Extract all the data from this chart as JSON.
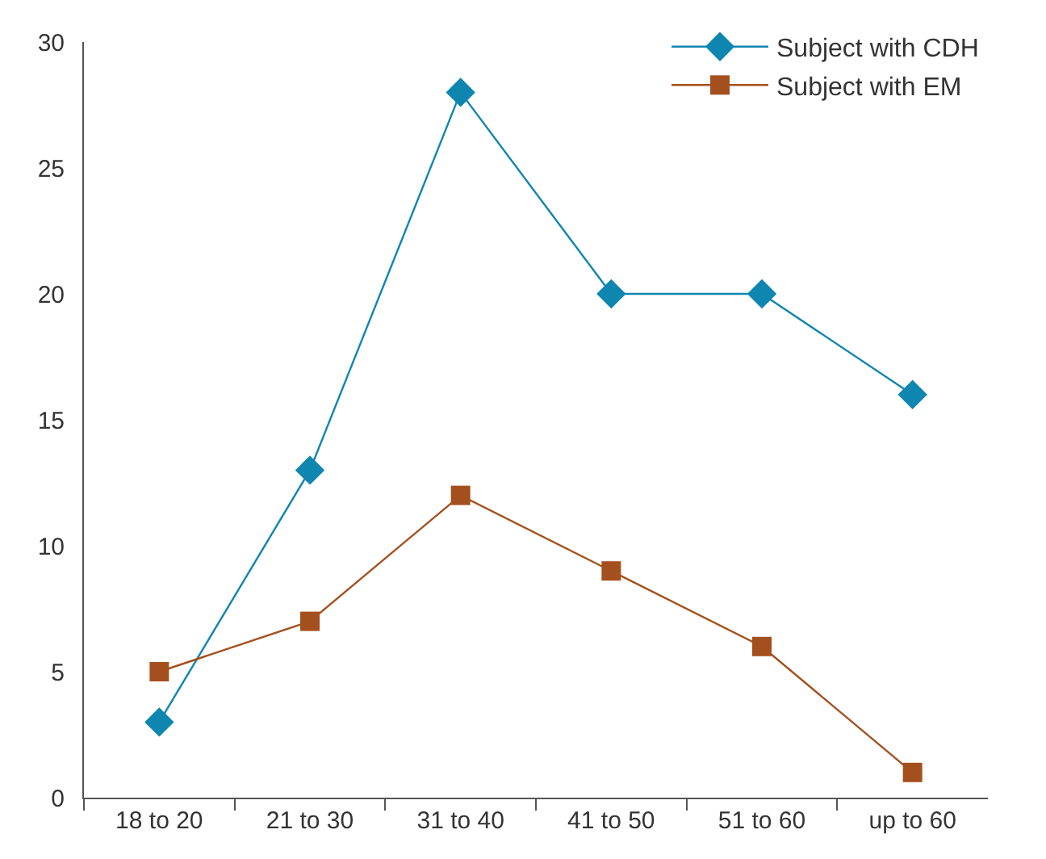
{
  "chart_data": {
    "type": "line",
    "categories": [
      "18 to 20",
      "21 to 30",
      "31 to 40",
      "41 to 50",
      "51 to 60",
      "up to 60"
    ],
    "series": [
      {
        "name": "Subject with CDH",
        "color": "#0f86b0",
        "marker": "diamond",
        "values": [
          3,
          13,
          28,
          20,
          20,
          16
        ]
      },
      {
        "name": "Subject with EM",
        "color": "#a4501e",
        "marker": "square",
        "values": [
          5,
          7,
          12,
          9,
          6,
          1
        ]
      }
    ],
    "ylim": [
      0,
      30
    ],
    "yticks": [
      0,
      5,
      10,
      15,
      20,
      25,
      30
    ],
    "legend": "top right",
    "line_style": "solid"
  }
}
